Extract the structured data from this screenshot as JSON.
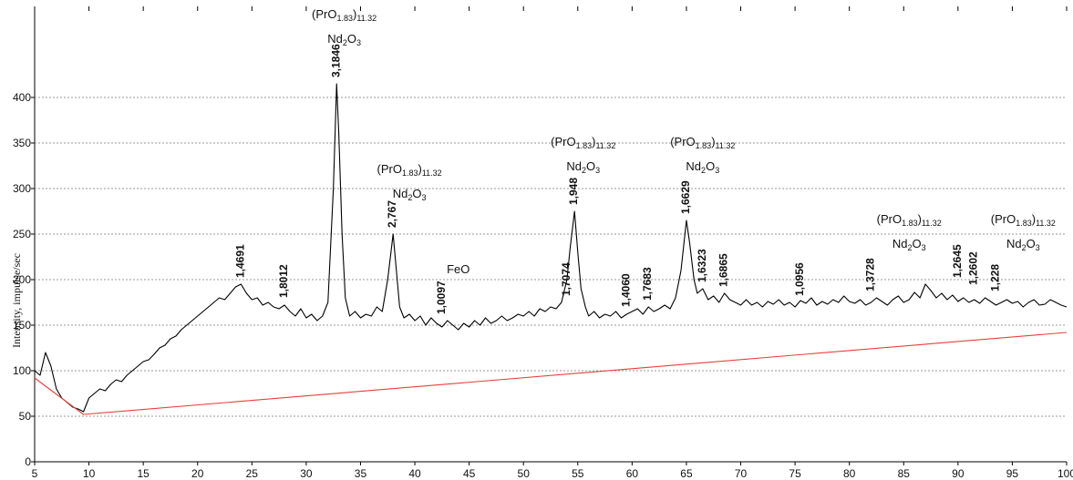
{
  "chart_data": {
    "type": "line",
    "ylabel": "Intensity, impulse/sec",
    "xlim": [
      5,
      100
    ],
    "xticks": [
      5,
      10,
      15,
      20,
      25,
      30,
      35,
      40,
      45,
      50,
      55,
      60,
      65,
      70,
      75,
      80,
      85,
      90,
      95,
      100
    ],
    "ylim": [
      0,
      500
    ],
    "yticks": [
      0,
      50,
      100,
      150,
      200,
      250,
      300,
      350,
      400
    ],
    "grid": true,
    "series": [
      {
        "color": "#000000",
        "x": [
          5,
          5.5,
          6,
          6.5,
          7,
          7.5,
          8,
          8.5,
          9,
          9.5,
          10,
          10.5,
          11,
          11.5,
          12,
          12.5,
          13,
          13.5,
          14,
          14.5,
          15,
          15.5,
          16,
          16.5,
          17,
          17.5,
          18,
          18.5,
          19,
          19.5,
          20,
          20.5,
          21,
          21.5,
          22,
          22.5,
          23,
          23.5,
          24,
          24.5,
          25,
          25.5,
          26,
          26.5,
          27,
          27.5,
          28,
          28.5,
          29,
          29.5,
          30,
          30.5,
          31,
          31.5,
          32,
          32.5,
          32.8,
          33,
          33.3,
          33.6,
          34,
          34.5,
          35,
          35.5,
          36,
          36.5,
          37,
          37.5,
          38,
          38.3,
          38.6,
          39,
          39.5,
          40,
          40.5,
          41,
          41.5,
          42,
          42.5,
          43,
          43.5,
          44,
          44.5,
          45,
          45.5,
          46,
          46.5,
          47,
          47.5,
          48,
          48.5,
          49,
          49.5,
          50,
          50.5,
          51,
          51.5,
          52,
          52.5,
          53,
          53.5,
          54,
          54.3,
          54.7,
          55,
          55.3,
          55.7,
          56,
          56.5,
          57,
          57.5,
          58,
          58.5,
          59,
          59.5,
          60,
          60.5,
          61,
          61.5,
          62,
          62.5,
          63,
          63.5,
          64,
          64.5,
          65,
          65.3,
          65.7,
          66,
          66.5,
          67,
          67.5,
          68,
          68.5,
          69,
          69.5,
          70,
          70.5,
          71,
          71.5,
          72,
          72.5,
          73,
          73.5,
          74,
          74.5,
          75,
          75.5,
          76,
          76.5,
          77,
          77.5,
          78,
          78.5,
          79,
          79.5,
          80,
          80.5,
          81,
          81.5,
          82,
          82.5,
          83,
          83.5,
          84,
          84.5,
          85,
          85.5,
          86,
          86.5,
          87,
          87.5,
          88,
          88.5,
          89,
          89.5,
          90,
          90.5,
          91,
          91.5,
          92,
          92.5,
          93,
          93.5,
          94,
          94.5,
          95,
          95.5,
          96,
          96.5,
          97,
          97.5,
          98,
          98.5,
          99,
          99.5,
          100
        ],
        "values": [
          100,
          95,
          120,
          105,
          80,
          70,
          65,
          60,
          58,
          55,
          70,
          75,
          80,
          78,
          85,
          90,
          88,
          95,
          100,
          105,
          110,
          112,
          118,
          125,
          128,
          135,
          138,
          145,
          150,
          155,
          160,
          165,
          170,
          175,
          180,
          178,
          185,
          192,
          195,
          185,
          178,
          180,
          172,
          175,
          170,
          168,
          172,
          165,
          160,
          168,
          158,
          162,
          155,
          160,
          175,
          300,
          415,
          360,
          250,
          180,
          160,
          165,
          158,
          162,
          160,
          170,
          165,
          200,
          250,
          210,
          170,
          158,
          162,
          155,
          160,
          150,
          158,
          152,
          148,
          155,
          150,
          145,
          152,
          148,
          155,
          150,
          158,
          152,
          155,
          160,
          155,
          158,
          162,
          160,
          165,
          160,
          168,
          165,
          170,
          168,
          175,
          200,
          235,
          275,
          230,
          190,
          170,
          160,
          165,
          158,
          162,
          160,
          165,
          158,
          162,
          165,
          168,
          162,
          170,
          165,
          168,
          172,
          168,
          180,
          210,
          265,
          240,
          200,
          185,
          190,
          178,
          182,
          175,
          185,
          178,
          175,
          172,
          178,
          172,
          175,
          170,
          176,
          173,
          178,
          172,
          175,
          170,
          177,
          174,
          180,
          172,
          176,
          173,
          178,
          175,
          182,
          176,
          174,
          178,
          172,
          175,
          180,
          176,
          172,
          178,
          182,
          175,
          178,
          186,
          180,
          195,
          188,
          180,
          185,
          178,
          183,
          176,
          180,
          175,
          178,
          174,
          180,
          176,
          172,
          175,
          178,
          174,
          176,
          170,
          175,
          178,
          172,
          173,
          178,
          175,
          172,
          170
        ]
      },
      {
        "color": "#e8403a",
        "x": [
          5,
          9.5,
          100
        ],
        "values": [
          92,
          52,
          142
        ]
      }
    ],
    "peak_labels": [
      {
        "x": 24,
        "y": 200,
        "text": "1,4691"
      },
      {
        "x": 28,
        "y": 178,
        "text": "1,8012"
      },
      {
        "x": 32.8,
        "y": 420,
        "text": "3,1846"
      },
      {
        "x": 38,
        "y": 255,
        "text": "2,767"
      },
      {
        "x": 42.5,
        "y": 160,
        "text": "1,0097"
      },
      {
        "x": 54,
        "y": 180,
        "text": "1,7074"
      },
      {
        "x": 54.7,
        "y": 280,
        "text": "1,948"
      },
      {
        "x": 59.5,
        "y": 168,
        "text": "1,4060"
      },
      {
        "x": 61.5,
        "y": 175,
        "text": "1,7683"
      },
      {
        "x": 65,
        "y": 270,
        "text": "1,6629"
      },
      {
        "x": 66.5,
        "y": 195,
        "text": "1,6323"
      },
      {
        "x": 68.5,
        "y": 190,
        "text": "1,6865"
      },
      {
        "x": 75.5,
        "y": 180,
        "text": "1,0956"
      },
      {
        "x": 82,
        "y": 185,
        "text": "1,3728"
      },
      {
        "x": 90,
        "y": 200,
        "text": "1,2645"
      },
      {
        "x": 91.5,
        "y": 192,
        "text": "1,2602"
      },
      {
        "x": 93.5,
        "y": 185,
        "text": "1,228"
      }
    ],
    "annotations": [
      {
        "x": 33.5,
        "y": 487,
        "lines": [
          [
            "(PrO",
            "1.83",
            ")",
            "11.32"
          ],
          [
            "Nd",
            "2",
            "O",
            "3"
          ]
        ]
      },
      {
        "x": 39.5,
        "y": 317,
        "lines": [
          [
            "(PrO",
            "1.83",
            ")",
            "11.32"
          ],
          [
            "Nd",
            "2",
            "O",
            "3"
          ]
        ]
      },
      {
        "x": 55.5,
        "y": 347,
        "lines": [
          [
            "(PrO",
            "1.83",
            ")",
            "11.32"
          ],
          [
            "Nd",
            "2",
            "O",
            "3"
          ]
        ]
      },
      {
        "x": 66.5,
        "y": 347,
        "lines": [
          [
            "(PrO",
            "1.83",
            ")",
            "11.32"
          ],
          [
            "Nd",
            "2",
            "O",
            "3"
          ]
        ]
      },
      {
        "x": 85.5,
        "y": 262,
        "lines": [
          [
            "(PrO",
            "1.83",
            ")",
            "11.32"
          ],
          [
            "Nd",
            "2",
            "O",
            "3"
          ]
        ]
      },
      {
        "x": 96,
        "y": 262,
        "lines": [
          [
            "(PrO",
            "1.83",
            ")",
            "11.32"
          ],
          [
            "Nd",
            "2",
            "O",
            "3"
          ]
        ]
      },
      {
        "x": 44,
        "y": 207,
        "lines": [
          [
            "FeO"
          ]
        ]
      }
    ]
  }
}
